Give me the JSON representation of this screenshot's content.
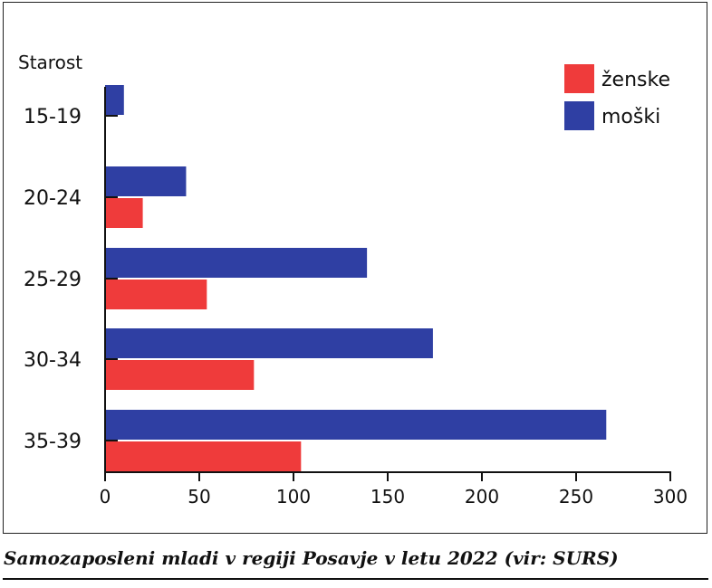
{
  "caption": "Samozaposleni mladi v regiji Posavje v letu 2022 (vir: SURS)",
  "chart_data": {
    "type": "bar",
    "orientation": "horizontal",
    "ylabel": "Starost",
    "categories": [
      "15-19",
      "20-24",
      "25-29",
      "30-34",
      "35-39"
    ],
    "series": [
      {
        "name": "ženske",
        "color": "#ef3b3b",
        "values": [
          0,
          20,
          54,
          79,
          104
        ]
      },
      {
        "name": "moški",
        "color": "#2f3fa3",
        "values": [
          10,
          43,
          139,
          174,
          266
        ]
      }
    ],
    "xlim": [
      0,
      300
    ],
    "xticks": [
      0,
      50,
      100,
      150,
      200,
      250,
      300
    ],
    "grid": false,
    "legend_position": "top-right"
  }
}
